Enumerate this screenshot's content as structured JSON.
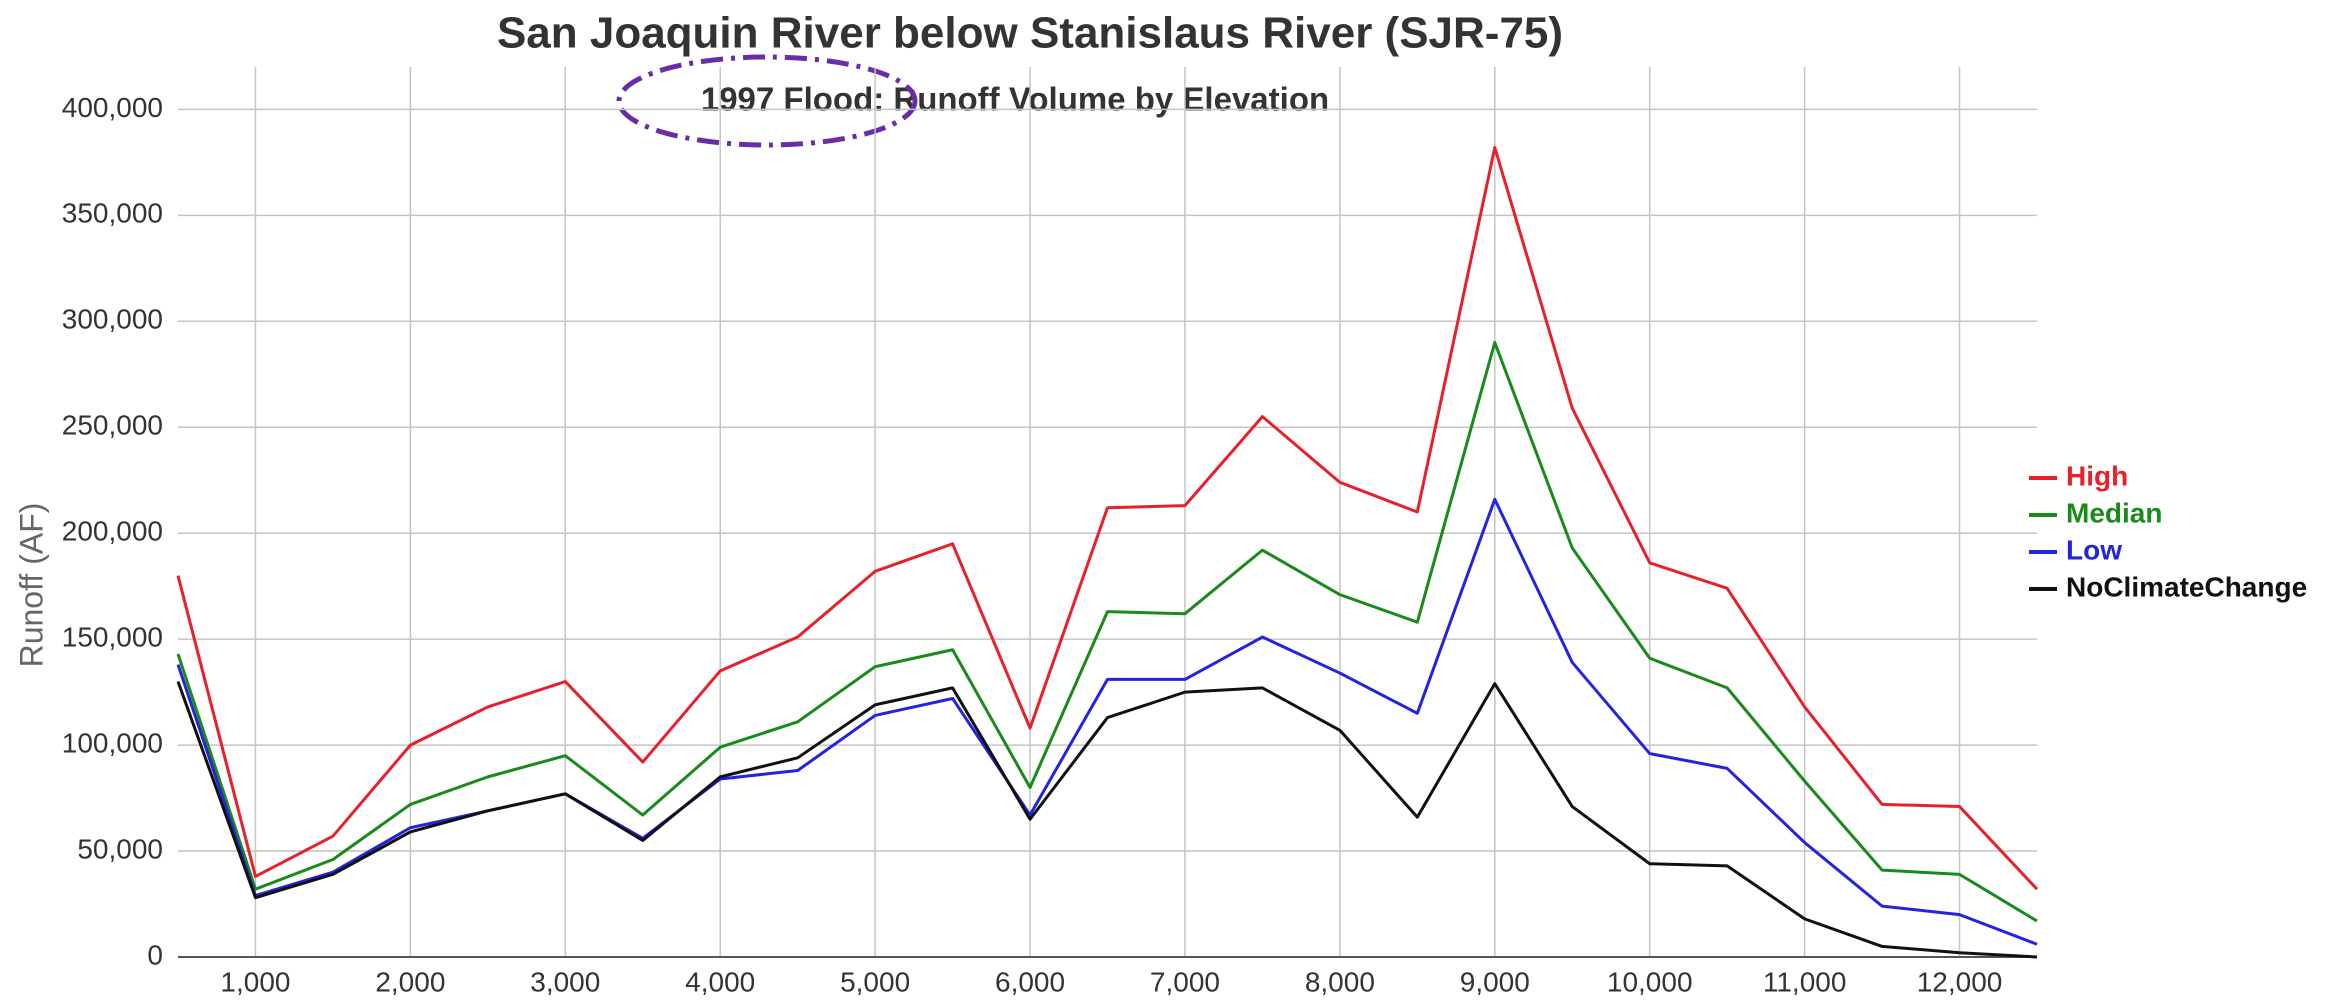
{
  "chart_data": {
    "type": "line",
    "title": "San Joaquin River below Stanislaus River (SJR-75)",
    "subtitle": "1997 Flood: Runoff Volume by Elevation",
    "y_label": "Runoff (AF)",
    "x": [
      500,
      1000,
      1500,
      2000,
      2500,
      3000,
      3500,
      4000,
      4500,
      5000,
      5500,
      6000,
      6500,
      7000,
      7500,
      8000,
      8500,
      9000,
      9500,
      10000,
      10500,
      11000,
      11500,
      12000,
      12500
    ],
    "series": [
      {
        "name": "High",
        "color": "#e8202a",
        "values": [
          180000,
          38000,
          57000,
          100000,
          118000,
          130000,
          92000,
          135000,
          151000,
          182000,
          195000,
          108000,
          212000,
          213000,
          255000,
          224000,
          210000,
          382000,
          259000,
          186000,
          174000,
          118000,
          72000,
          71000,
          32000
        ]
      },
      {
        "name": "Median",
        "color": "#1a8a1a",
        "values": [
          143000,
          32000,
          46000,
          72000,
          85000,
          95000,
          67000,
          99000,
          111000,
          137000,
          145000,
          80000,
          163000,
          162000,
          192000,
          171000,
          158000,
          290000,
          193000,
          141000,
          127000,
          83000,
          41000,
          39000,
          17000
        ]
      },
      {
        "name": "Low",
        "color": "#2323e0",
        "values": [
          138000,
          29000,
          40000,
          61000,
          69000,
          77000,
          56000,
          84000,
          88000,
          114000,
          122000,
          67000,
          131000,
          131000,
          151000,
          134000,
          115000,
          216000,
          139000,
          96000,
          89000,
          54000,
          24000,
          20000,
          6000
        ]
      },
      {
        "name": "NoClimateChange",
        "color": "#111111",
        "values": [
          130000,
          28000,
          39000,
          59000,
          69000,
          77000,
          55000,
          85000,
          94000,
          119000,
          127000,
          65000,
          113000,
          125000,
          127000,
          107000,
          66000,
          129000,
          71000,
          44000,
          43000,
          18000,
          5000,
          2000,
          0
        ]
      }
    ],
    "xlim": [
      500,
      12500
    ],
    "xticks": [
      {
        "value": 1000,
        "label": "1,000"
      },
      {
        "value": 2000,
        "label": "2,000"
      },
      {
        "value": 3000,
        "label": "3,000"
      },
      {
        "value": 4000,
        "label": "4,000"
      },
      {
        "value": 5000,
        "label": "5,000"
      },
      {
        "value": 6000,
        "label": "6,000"
      },
      {
        "value": 7000,
        "label": "7,000"
      },
      {
        "value": 8000,
        "label": "8,000"
      },
      {
        "value": 9000,
        "label": "9,000"
      },
      {
        "value": 10000,
        "label": "10,000"
      },
      {
        "value": 11000,
        "label": "11,000"
      },
      {
        "value": 12000,
        "label": "12,000"
      }
    ],
    "ylim": [
      0,
      420000
    ],
    "yticks": [
      0,
      {
        "value": 50000,
        "label": "50,000"
      },
      {
        "value": 100000,
        "label": "100,000"
      },
      {
        "value": 150000,
        "label": "150,000"
      },
      {
        "value": 200000,
        "label": "200,000"
      },
      {
        "value": 250000,
        "label": "250,000"
      },
      {
        "value": 300000,
        "label": "300,000"
      },
      {
        "value": 350000,
        "label": "350,000"
      },
      {
        "value": 400000,
        "label": "400,000"
      }
    ],
    "grid": true,
    "legend": "right"
  }
}
